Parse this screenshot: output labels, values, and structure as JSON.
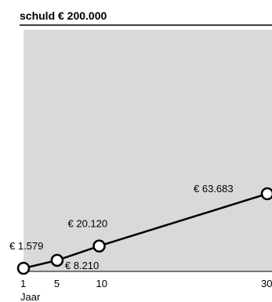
{
  "chart_data": {
    "type": "line",
    "title": "schuld € 200.000",
    "xlabel": "Jaar",
    "ylabel": "",
    "x": [
      1,
      5,
      10,
      30
    ],
    "xticks": [
      "1",
      "5",
      "10",
      "30"
    ],
    "series": [
      {
        "values": [
          1579,
          8210,
          20120,
          63683
        ],
        "labels": [
          "€ 1.579",
          "€ 8.210",
          "€ 20.120",
          "€ 63.683"
        ]
      }
    ],
    "xlim": [
      1,
      30
    ],
    "ylim": [
      0,
      200000
    ],
    "grid": false,
    "legend": "none",
    "colors": {
      "plot_background": "#d9d9d9",
      "line": "#000000",
      "marker_fill": "#ffffff",
      "marker_stroke": "#000000"
    }
  }
}
